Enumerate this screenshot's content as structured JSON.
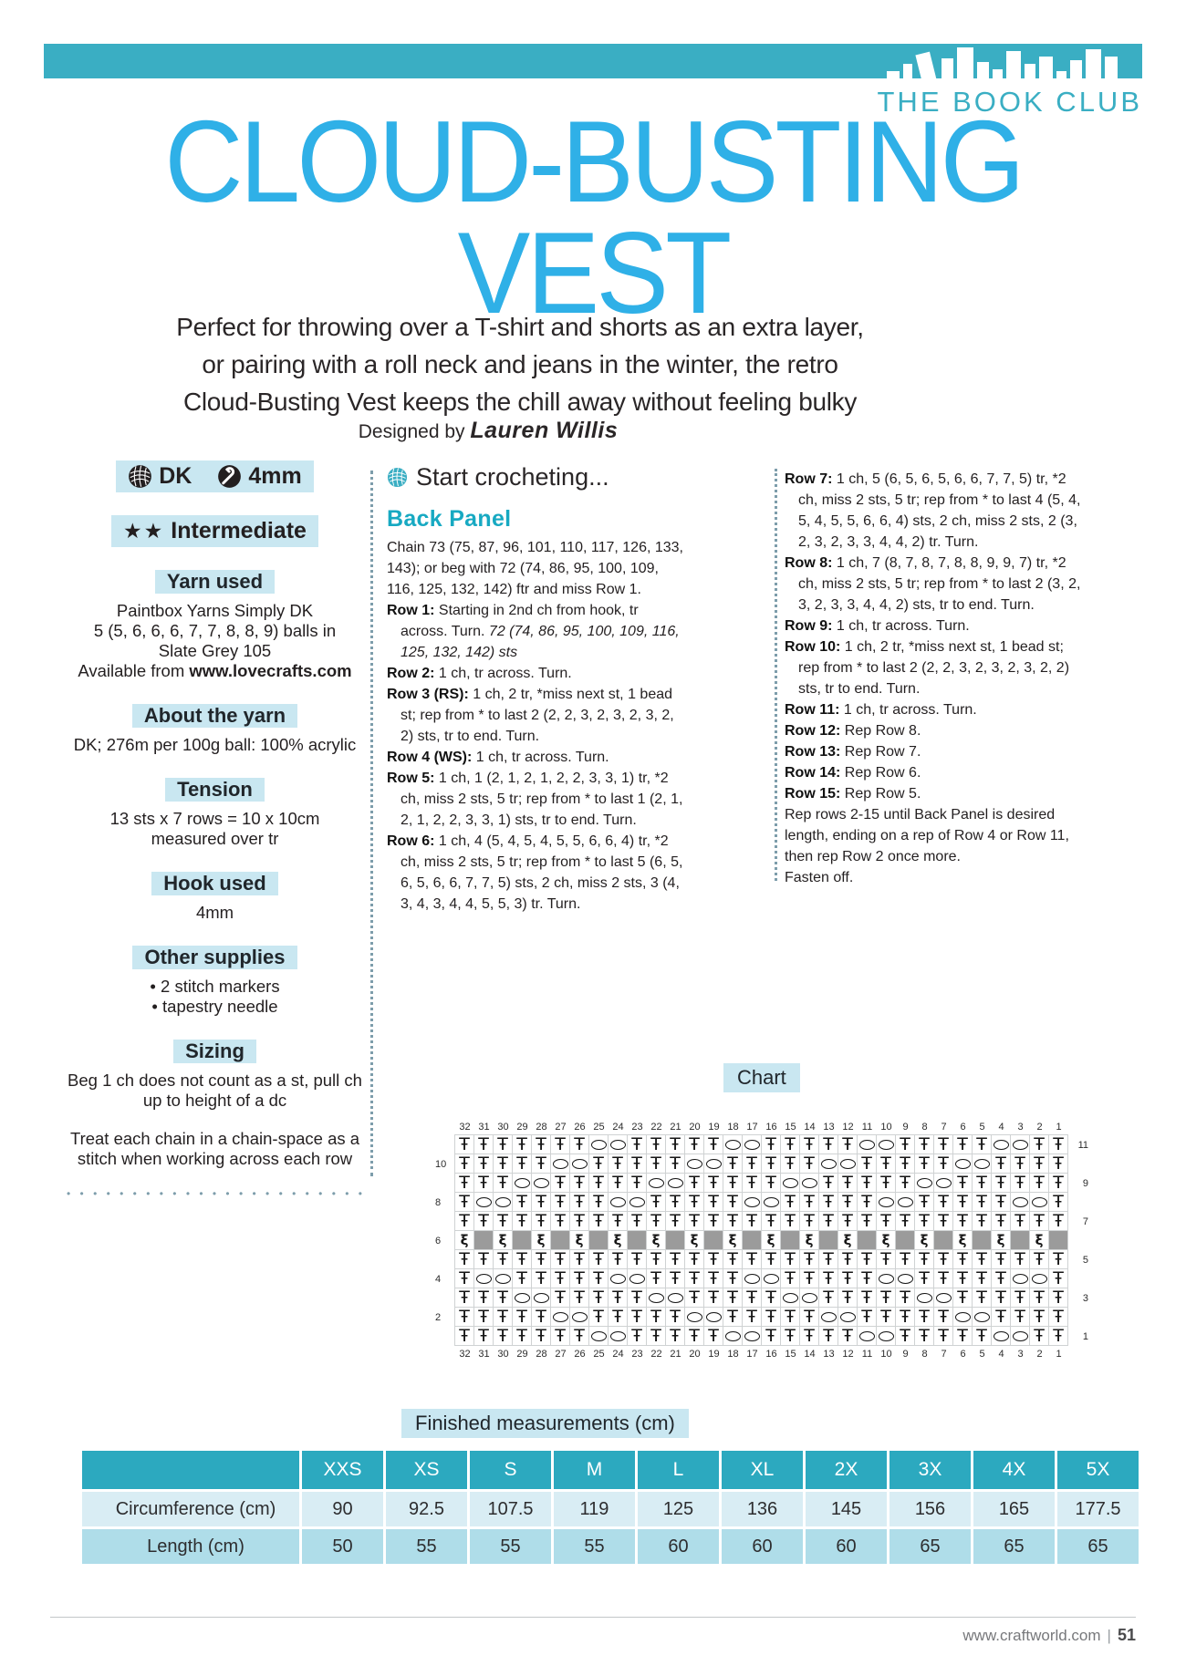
{
  "page": {
    "brand": "THE BOOK CLUB",
    "title_line1": "CLOUD-BUSTING",
    "title_line2": "VEST",
    "intro": [
      "Perfect for throwing over a T-shirt and shorts as an extra layer,",
      "or pairing with a roll neck and jeans in the winter, the retro",
      "Cloud-Busting Vest keeps the chill away without feeling bulky"
    ],
    "designed_by": "Designed by",
    "designer": "Lauren Willis"
  },
  "sidebar": {
    "weight_badge": "DK",
    "hook_badge": "4mm",
    "skill_stars": "★★",
    "skill_label": "Intermediate",
    "yarn_used": {
      "title": "Yarn used",
      "lines": [
        "Paintbox Yarns Simply DK",
        "5 (5, 6, 6, 6, 7, 7, 8, 8, 9) balls in",
        "Slate Grey 105"
      ],
      "available_prefix": "Available from",
      "available_bold": "www.lovecrafts.com"
    },
    "about_yarn": {
      "title": "About the yarn",
      "text": "DK; 276m per 100g ball: 100% acrylic"
    },
    "tension": {
      "title": "Tension",
      "lines": [
        "13 sts x 7 rows = 10 x 10cm",
        "measured over tr"
      ]
    },
    "hook_used": {
      "title": "Hook used",
      "text": "4mm"
    },
    "other_supplies": {
      "title": "Other supplies",
      "items": [
        "2 stitch markers",
        "tapestry needle"
      ]
    },
    "sizing": {
      "title": "Sizing",
      "para1": "Beg 1 ch does not count as a st, pull ch up to height of a dc",
      "para2": "Treat each chain in a chain-space as a stitch when working across each row"
    }
  },
  "pattern": {
    "section_title": "Start crocheting...",
    "subsection": "Back Panel",
    "col1": [
      {
        "text": "Chain 73 (75, 87, 96, 101, 110, 117, 126, 133, 143); or beg with 72 (74, 86, 95, 100, 109, 116, 125, 132, 142) ftr and miss Row 1.",
        "flush": true
      },
      {
        "label": "Row 1:",
        "text": "Starting in 2nd ch from hook, tr across. Turn. ",
        "italic": "72 (74, 86, 95, 100, 109, 116, 125, 132, 142) sts"
      },
      {
        "label": "Row 2:",
        "text": "1 ch, tr across. Turn."
      },
      {
        "label": "Row 3 (RS):",
        "text": "1 ch, 2 tr, *miss next st, 1 bead st; rep from * to last 2 (2, 2, 3, 2, 3, 2, 3, 2, 2) sts, tr to end. Turn."
      },
      {
        "label": "Row 4 (WS):",
        "text": "1 ch, tr across. Turn."
      },
      {
        "label": "Row 5:",
        "text": "1 ch, 1 (2, 1, 2, 1, 2, 2, 3, 3, 1) tr, *2 ch, miss 2 sts, 5 tr; rep from * to last 1 (2, 1, 2, 1, 2, 2, 3, 3, 1) sts, tr to end. Turn."
      },
      {
        "label": "Row 6:",
        "text": "1 ch, 4 (5, 4, 5, 4, 5, 5, 6, 6, 4) tr, *2 ch, miss 2 sts, 5 tr; rep from * to last 5 (6, 5, 6, 5, 6, 6, 7, 7, 5) sts, 2 ch, miss 2 sts, 3 (4, 3, 4, 3, 4, 4, 5, 5, 3) tr. Turn."
      }
    ],
    "col2": [
      {
        "label": "Row 7:",
        "text": "1 ch, 5 (6, 5, 6, 5, 6, 6, 7, 7, 5) tr, *2 ch, miss 2 sts, 5 tr; rep from * to last 4 (5, 4, 5, 4, 5, 5, 6, 6, 4) sts, 2 ch, miss 2 sts, 2 (3, 2, 3, 2, 3, 3, 4, 4, 2) tr. Turn."
      },
      {
        "label": "Row 8:",
        "text": "1 ch, 7 (8, 7, 8, 7, 8, 8, 9, 9, 7) tr, *2 ch, miss 2 sts, 5 tr; rep from * to last 2 (3, 2, 3, 2, 3, 3, 4, 4, 2) sts, tr to end. Turn."
      },
      {
        "label": "Row 9:",
        "text": "1 ch, tr across. Turn."
      },
      {
        "label": "Row 10:",
        "text": "1 ch, 2 tr, *miss next st, 1 bead st; rep from * to last 2 (2, 2, 3, 2, 3, 2, 3, 2, 2) sts, tr to end. Turn."
      },
      {
        "label": "Row 11:",
        "text": "1 ch, tr across. Turn."
      },
      {
        "label": "Row 12:",
        "text": "Rep Row 8."
      },
      {
        "label": "Row 13:",
        "text": "Rep Row 7."
      },
      {
        "label": "Row 14:",
        "text": "Rep Row 6."
      },
      {
        "label": "Row 15:",
        "text": "Rep Row 5."
      },
      {
        "text": "Rep rows 2-15 until Back Panel is desired length, ending on a rep of Row 4 or Row 11, then rep Row 2 once more.",
        "flush": true
      },
      {
        "text": "Fasten off.",
        "flush": true
      }
    ]
  },
  "chart": {
    "title": "Chart",
    "column_numbers": [
      32,
      31,
      30,
      29,
      28,
      27,
      26,
      25,
      24,
      23,
      22,
      21,
      20,
      19,
      18,
      17,
      16,
      15,
      14,
      13,
      12,
      11,
      10,
      9,
      8,
      7,
      6,
      5,
      4,
      3,
      2,
      1
    ],
    "rows": [
      {
        "num": 11,
        "side": "right",
        "cells": "TTTTTTTOOTTTTTOOTTTTTOOTTTTTOOTT"
      },
      {
        "num": 10,
        "side": "left",
        "cells": "TTTTTOOTTTTTOOTTTTTOOTTTTTOOTTTT"
      },
      {
        "num": 9,
        "side": "right",
        "cells": "TTTOOTTTTTOOTTTTTOOTTTTTOOTTTTTT"
      },
      {
        "num": 8,
        "side": "left",
        "cells": "TOOTTTTTOOTTTTTOOTTTTTOOTTTTTOOT"
      },
      {
        "num": 7,
        "side": "right",
        "cells": "TTTTTTTTTTTTTTTTTTTTTTTTTTTTTTTT"
      },
      {
        "num": 6,
        "side": "left",
        "cells": "BGBGBGBGBGBGBGBGBGBGBGBGBGBGBGBG"
      },
      {
        "num": 5,
        "side": "right",
        "cells": "TTTTTTTTTTTTTTTTTTTTTTTTTTTTTTTT"
      },
      {
        "num": 4,
        "side": "left",
        "cells": "TOOTTTTTOOTTTTTOOTTTTTOOTTTTTOOT"
      },
      {
        "num": 3,
        "side": "right",
        "cells": "TTTOOTTTTTOOTTTTTOOTTTTTOOTTTTTT"
      },
      {
        "num": 2,
        "side": "left",
        "cells": "TTTTTOOTTTTTOOTTTTTOOTTTTTOOTTTT"
      },
      {
        "num": 1,
        "side": "right",
        "cells": "TTTTTTTOOTTTTTOOTTTTTOOTTTTTOOTT"
      }
    ],
    "legend": {
      "T": "treble-symbol",
      "O": "chain-space-symbol",
      "B": "bead-stitch-symbol",
      "G": "no-stitch-grey"
    }
  },
  "measurements": {
    "title": "Finished measurements (cm)",
    "sizes": [
      "XXS",
      "XS",
      "S",
      "M",
      "L",
      "XL",
      "2X",
      "3X",
      "4X",
      "5X"
    ],
    "rows": [
      {
        "label": "Circumference (cm)",
        "values": [
          "90",
          "92.5",
          "107.5",
          "119",
          "125",
          "136",
          "145",
          "156",
          "165",
          "177.5"
        ]
      },
      {
        "label": "Length (cm)",
        "values": [
          "50",
          "55",
          "55",
          "55",
          "60",
          "60",
          "60",
          "65",
          "65",
          "65"
        ]
      }
    ]
  },
  "footer": {
    "url": "www.craftworld.com",
    "divider": "|",
    "page": "51"
  },
  "icons": {
    "masthead": "book-spines-icon",
    "weight": "yarn-ball-icon",
    "hook": "crochet-hook-icon",
    "start": "yarn-ball-icon"
  },
  "colors": {
    "teal": "#3aaec3",
    "title_blue": "#2fb0e7",
    "accent_teal": "#17a9c2",
    "highlight": "#c9e7f1",
    "table_header": "#2ca9bf",
    "row_light": "#d9edf4",
    "row_medium": "#afdde9",
    "grey_cell": "#9b9b9b"
  }
}
